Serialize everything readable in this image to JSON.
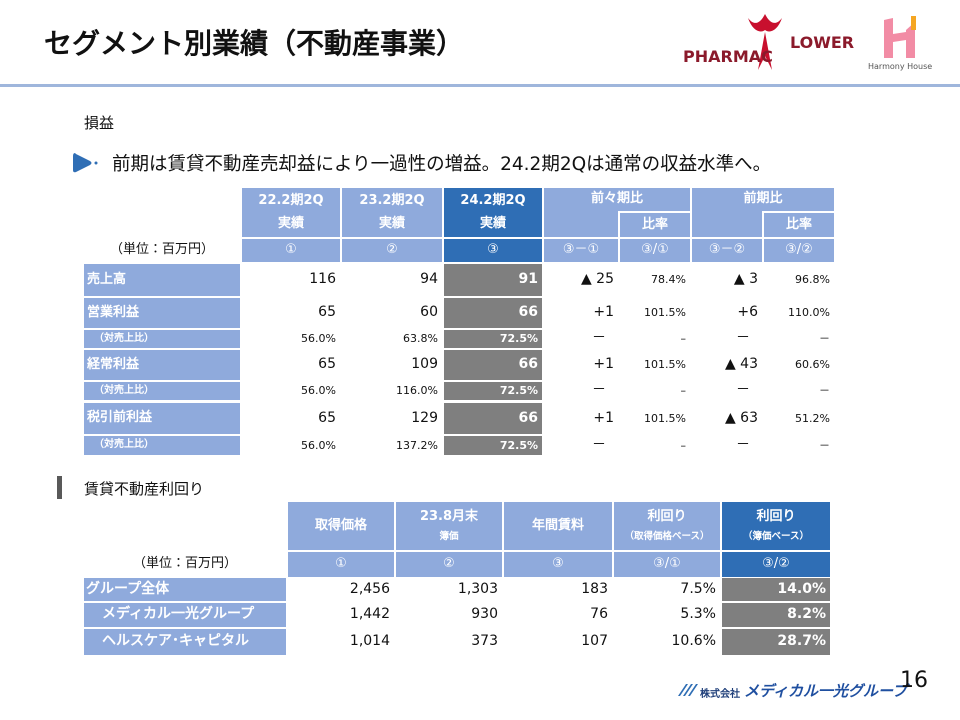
{
  "header": {
    "title": "セグメント別業績（不動産事業）",
    "logo_left": "PHARMAC",
    "logo_right": "LOWER",
    "logo_sub": "Harmony House"
  },
  "section1": {
    "heading": "損益",
    "bullet": "前期は賃貸不動産売却益により一過性の増益。24.2期2Qは通常の収益水準へ。",
    "table": {
      "header1": [
        "22.2期2Q",
        "23.2期2Q",
        "24.2期2Q",
        "前々期比",
        "前期比"
      ],
      "header2": [
        "実績",
        "実績",
        "実績",
        "比率",
        "比率"
      ],
      "units": [
        "（単位：百万円）",
        "①",
        "②",
        "③",
        "③－①",
        "③/①",
        "③－②",
        "③/②"
      ],
      "rows": [
        [
          "売上高",
          "116",
          "94",
          "91",
          "▲ 25",
          "78.4%",
          "▲ 3",
          "96.8%"
        ],
        [
          "営業利益",
          "65",
          "60",
          "66",
          "+1",
          "101.5%",
          "+6",
          "110.0%"
        ],
        [
          "（対売上比）",
          "56.0%",
          "63.8%",
          "72.5%",
          "－",
          "–",
          "－",
          "－"
        ],
        [
          "経常利益",
          "65",
          "109",
          "66",
          "+1",
          "101.5%",
          "▲ 43",
          "60.6%"
        ],
        [
          "（対売上比）",
          "56.0%",
          "116.0%",
          "72.5%",
          "－",
          "–",
          "－",
          "－"
        ],
        [
          "税引前利益",
          "65",
          "129",
          "66",
          "+1",
          "101.5%",
          "▲ 63",
          "51.2%"
        ],
        [
          "（対売上比）",
          "56.0%",
          "137.2%",
          "72.5%",
          "－",
          "–",
          "－",
          "－"
        ]
      ]
    }
  },
  "section2": {
    "heading": "賃貸不動産利回り",
    "table": {
      "header": [
        [
          "取得価格"
        ],
        [
          "23.8月末",
          "簿価"
        ],
        [
          "年間賃料"
        ],
        [
          "利回り",
          "（取得価格ベース）"
        ],
        [
          "利回り",
          "（簿価ベース）"
        ]
      ],
      "units": [
        "（単位：百万円）",
        "①",
        "②",
        "③",
        "③/①",
        "③/②"
      ],
      "rows": [
        [
          "グループ全体",
          "2,456",
          "1,303",
          "183",
          "7.5%",
          "14.0%"
        ],
        [
          "メディカル一光グループ",
          "1,442",
          "930",
          "76",
          "5.3%",
          "8.2%"
        ],
        [
          "ヘルスケア･キャピタル",
          "1,014",
          "373",
          "107",
          "10.6%",
          "28.7%"
        ]
      ]
    }
  },
  "footer": {
    "company_prefix": "株式会社",
    "company_name": "メディカル一光グループ",
    "page": "16"
  }
}
